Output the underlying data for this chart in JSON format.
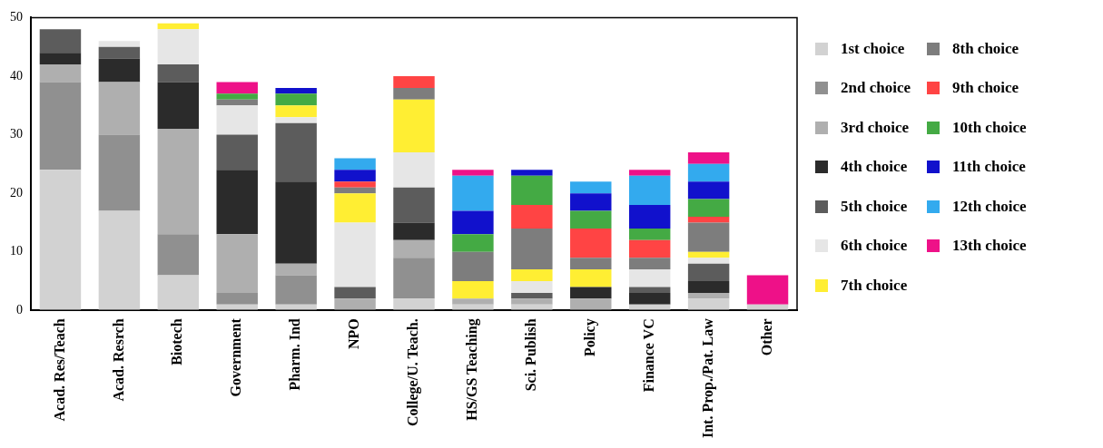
{
  "chart_data": {
    "type": "bar",
    "stacked": true,
    "categories": [
      "Acad. Res/Teach",
      "Acad. Resrch",
      "Biotech",
      "Government",
      "Pharm. Ind",
      "NPO",
      "College/U. Teach.",
      "HS/GS Teaching",
      "Sci. Publish",
      "Policy",
      "Finance VC",
      "Int. Prop./Pat. Law",
      "Other"
    ],
    "ylim": [
      0,
      50
    ],
    "yticks": [
      0,
      10,
      20,
      30,
      40,
      50
    ],
    "grid": false,
    "legend": "right",
    "series": [
      {
        "name": "1st choice",
        "color": "#d2d2d2",
        "values": [
          24,
          17,
          6,
          1,
          1,
          0,
          2,
          1,
          1,
          0,
          1,
          2,
          1
        ]
      },
      {
        "name": "2nd choice",
        "color": "#909090",
        "values": [
          15,
          13,
          7,
          2,
          5,
          0,
          7,
          0,
          0,
          0,
          0,
          0,
          0
        ]
      },
      {
        "name": "3rd choice",
        "color": "#afafaf",
        "values": [
          3,
          9,
          18,
          10,
          2,
          2,
          3,
          1,
          1,
          2,
          0,
          1,
          0
        ]
      },
      {
        "name": "4th choice",
        "color": "#2b2b2b",
        "values": [
          2,
          4,
          8,
          11,
          14,
          0,
          3,
          0,
          0,
          2,
          2,
          2,
          0
        ]
      },
      {
        "name": "5th choice",
        "color": "#5c5c5c",
        "values": [
          4,
          2,
          3,
          6,
          10,
          2,
          6,
          0,
          1,
          0,
          1,
          3,
          0
        ]
      },
      {
        "name": "6th choice",
        "color": "#e6e6e6",
        "values": [
          0,
          1,
          6,
          5,
          1,
          11,
          6,
          0,
          2,
          0,
          3,
          1,
          0
        ]
      },
      {
        "name": "7th choice",
        "color": "#ffee33",
        "values": [
          0,
          0,
          1,
          0,
          2,
          5,
          9,
          3,
          2,
          3,
          0,
          1,
          0
        ]
      },
      {
        "name": "8th choice",
        "color": "#7d7d7d",
        "values": [
          0,
          0,
          0,
          1,
          0,
          1,
          2,
          5,
          7,
          2,
          2,
          5,
          0
        ]
      },
      {
        "name": "9th choice",
        "color": "#ff4444",
        "values": [
          0,
          0,
          0,
          0,
          0,
          1,
          2,
          0,
          4,
          5,
          3,
          1,
          0
        ]
      },
      {
        "name": "10th choice",
        "color": "#44aa44",
        "values": [
          0,
          0,
          0,
          1,
          2,
          0,
          0,
          3,
          5,
          3,
          2,
          3,
          0
        ]
      },
      {
        "name": "11th choice",
        "color": "#1111cc",
        "values": [
          0,
          0,
          0,
          0,
          1,
          2,
          0,
          4,
          1,
          3,
          4,
          3,
          0
        ]
      },
      {
        "name": "12th choice",
        "color": "#33aaee",
        "values": [
          0,
          0,
          0,
          0,
          0,
          2,
          0,
          6,
          0,
          2,
          5,
          3,
          0
        ]
      },
      {
        "name": "13th choice",
        "color": "#ee1188",
        "values": [
          0,
          0,
          0,
          2,
          0,
          0,
          0,
          1,
          0,
          0,
          1,
          2,
          5
        ]
      }
    ]
  }
}
